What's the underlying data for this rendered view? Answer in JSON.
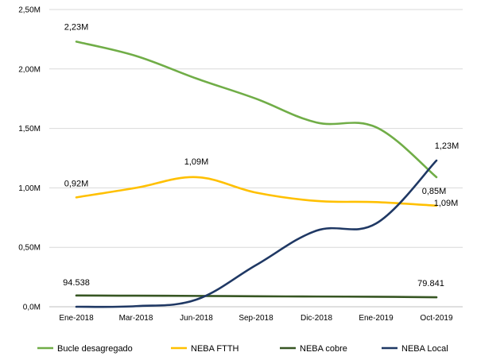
{
  "chart_data": {
    "type": "line",
    "categories": [
      "Ene-2018",
      "Mar-2018",
      "Jun-2018",
      "Sep-2018",
      "Dic-2018",
      "Ene-2019",
      "Oct-2019"
    ],
    "ylim": [
      0,
      2500000
    ],
    "yticks": [
      0,
      500000,
      1000000,
      1500000,
      2000000,
      2500000
    ],
    "ytick_labels": [
      "0,0M",
      "0,50M",
      "1,00M",
      "1,50M",
      "2,00M",
      "2,50M"
    ],
    "grid": true,
    "legend_position": "bottom",
    "series": [
      {
        "name": "Bucle desagregado",
        "color": "#70ad47",
        "values": [
          2230000,
          2110000,
          1920000,
          1750000,
          1550000,
          1510000,
          1090000
        ]
      },
      {
        "name": "NEBA FTTH",
        "color": "#ffc000",
        "values": [
          920000,
          1000000,
          1090000,
          960000,
          890000,
          880000,
          850000
        ]
      },
      {
        "name": "NEBA cobre",
        "color": "#375623",
        "values": [
          94538,
          93000,
          91000,
          88000,
          86000,
          84000,
          79841
        ]
      },
      {
        "name": "NEBA Local",
        "color": "#1f3864",
        "values": [
          0,
          5000,
          60000,
          350000,
          640000,
          700000,
          1230000
        ]
      }
    ],
    "annotations": [
      {
        "series": 0,
        "point": 0,
        "text": "2,23M"
      },
      {
        "series": 0,
        "point": 6,
        "text": "1,09M"
      },
      {
        "series": 1,
        "point": 0,
        "text": "0,92M"
      },
      {
        "series": 1,
        "point": 2,
        "text": "1,09M"
      },
      {
        "series": 1,
        "point": 6,
        "text": "0,85M"
      },
      {
        "series": 2,
        "point": 0,
        "text": "94.538"
      },
      {
        "series": 2,
        "point": 6,
        "text": "79.841"
      },
      {
        "series": 3,
        "point": 6,
        "text": "1,23M"
      }
    ]
  }
}
